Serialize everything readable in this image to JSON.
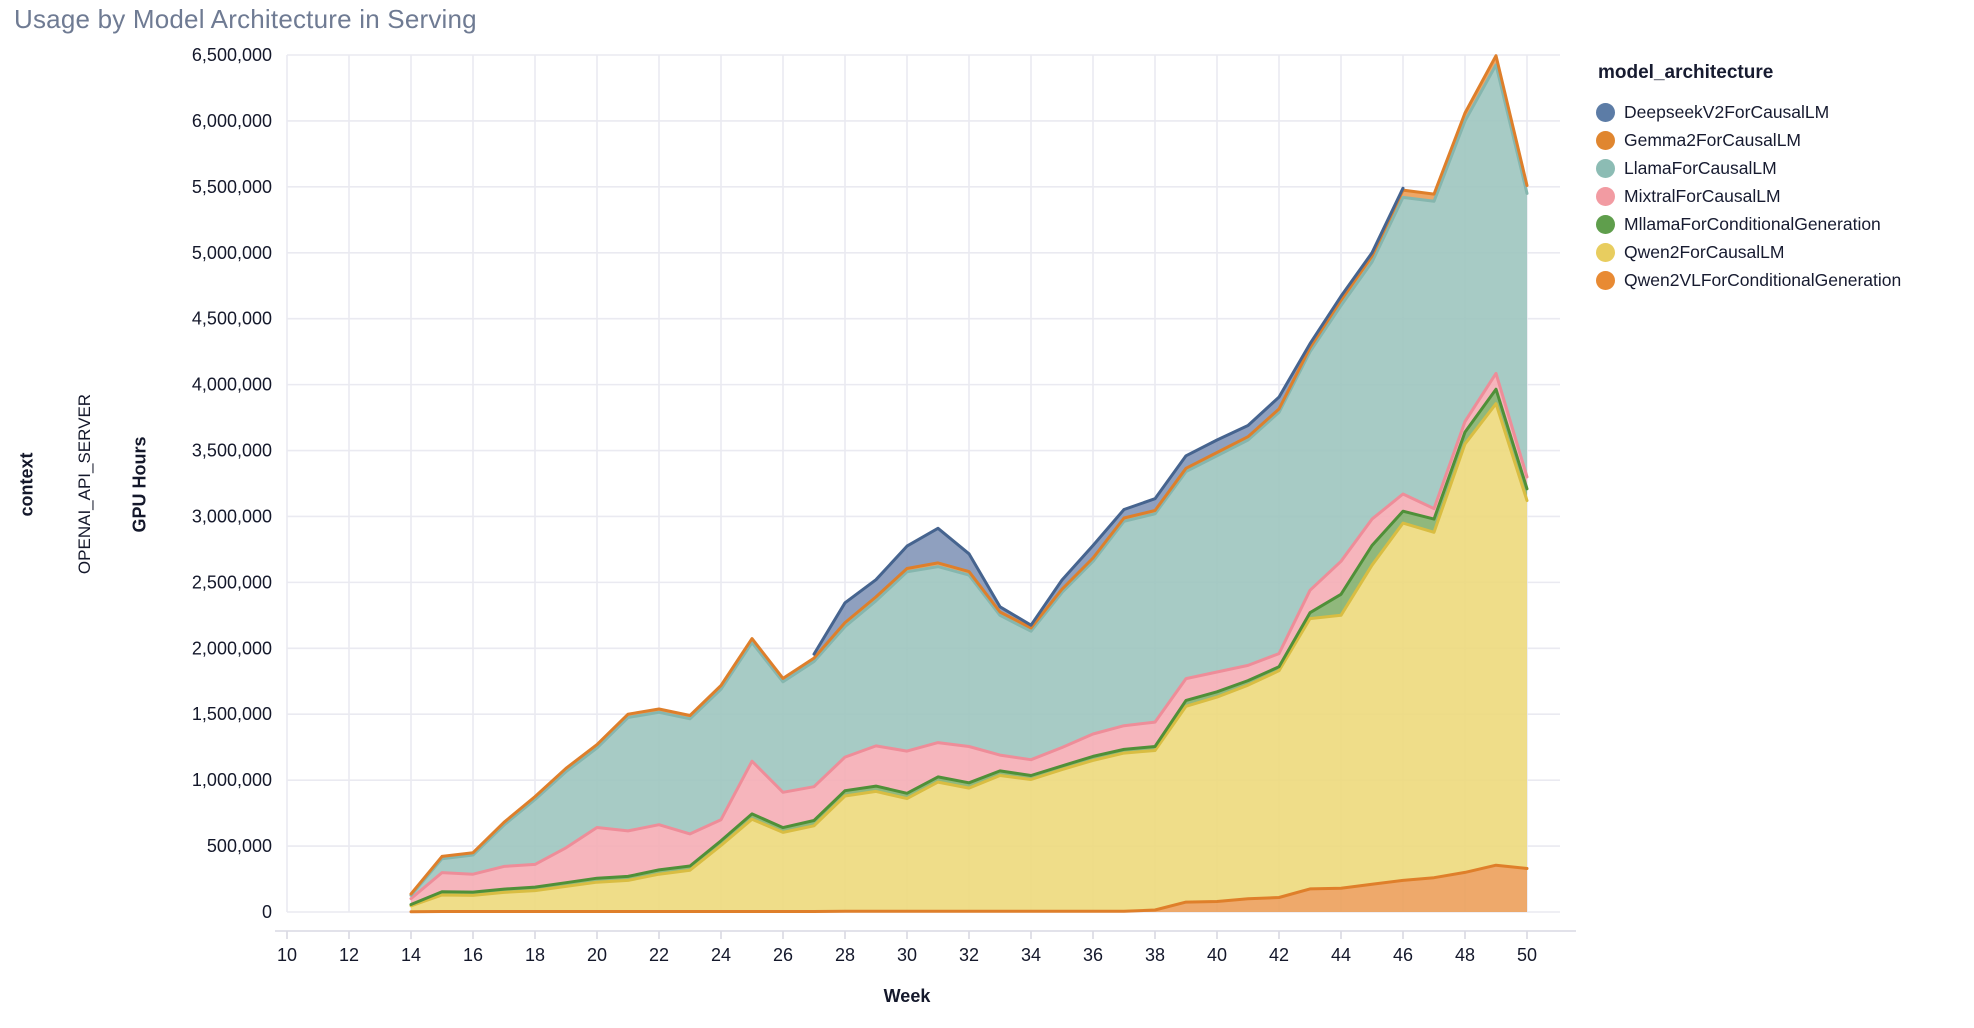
{
  "page": {
    "title": "Usage by Model Architecture in Serving"
  },
  "facet": {
    "row_field": "context",
    "row_value": "OPENAI_API_SERVER"
  },
  "axes": {
    "y_title": "GPU Hours",
    "x_title": "Week",
    "y_tick_labels": [
      "0",
      "500,000",
      "1,000,000",
      "1,500,000",
      "2,000,000",
      "2,500,000",
      "3,000,000",
      "3,500,000",
      "4,000,000",
      "4,500,000",
      "5,000,000",
      "5,500,000",
      "6,000,000",
      "6,500,000"
    ],
    "x_tick_labels": [
      "10",
      "12",
      "14",
      "16",
      "18",
      "20",
      "22",
      "24",
      "26",
      "28",
      "30",
      "32",
      "34",
      "36",
      "38",
      "40",
      "42",
      "44",
      "46",
      "48",
      "50"
    ]
  },
  "legend": {
    "title": "model_architecture"
  },
  "chart_data": {
    "type": "area",
    "stacked": true,
    "title": "Usage by Model Architecture in Serving",
    "xlabel": "Week",
    "ylabel": "GPU Hours",
    "x_domain": [
      10,
      50
    ],
    "ylim": [
      0,
      6500000
    ],
    "grid": true,
    "legend_position": "right",
    "x": [
      14,
      15,
      16,
      17,
      18,
      19,
      20,
      21,
      22,
      23,
      24,
      25,
      26,
      27,
      28,
      29,
      30,
      31,
      32,
      33,
      34,
      35,
      36,
      37,
      38,
      39,
      40,
      41,
      42,
      43,
      44,
      45,
      46,
      47,
      48,
      49,
      50
    ],
    "colors": {
      "grid": "#eaeaf1",
      "axis_line": "#d9d9e3",
      "tick_text": "#14182b",
      "title_text": "#6f7b93"
    },
    "series": [
      {
        "name": "DeepseekV2ForCausalLM",
        "legend_color": "#5c7ca6",
        "fill": "#7e92b5",
        "stroke": "#46648f",
        "values": [
          null,
          null,
          null,
          null,
          null,
          null,
          null,
          null,
          null,
          null,
          null,
          null,
          null,
          30000,
          150000,
          130000,
          170000,
          262000,
          135000,
          40000,
          20000,
          70000,
          95000,
          65000,
          90000,
          95000,
          95000,
          85000,
          90000,
          30000,
          30000,
          25000,
          15000,
          null,
          null,
          null,
          null
        ]
      },
      {
        "name": "Gemma2ForCausalLM",
        "legend_color": "#e0862f",
        "fill": "#ec9a50",
        "stroke": "#de7f2b",
        "values": [
          10000,
          18000,
          18000,
          20000,
          22000,
          25000,
          25000,
          25000,
          25000,
          25000,
          28000,
          30000,
          26000,
          26000,
          30000,
          30000,
          25000,
          28000,
          27000,
          25000,
          25000,
          25000,
          25000,
          25000,
          25000,
          25000,
          25000,
          25000,
          25000,
          30000,
          40000,
          45000,
          55000,
          55000,
          60000,
          70000,
          60000
        ]
      },
      {
        "name": "LlamaForCausalLM",
        "legend_color": "#8cbcb4",
        "fill": "#9ac3bc",
        "stroke": "#85b6ae",
        "values": [
          25000,
          105000,
          145000,
          314000,
          492000,
          578000,
          604000,
          860000,
          853000,
          873000,
          990000,
          900000,
          838000,
          950000,
          990000,
          1100000,
          1360000,
          1335000,
          1300000,
          1060000,
          975000,
          1175000,
          1310000,
          1550000,
          1580000,
          1570000,
          1640000,
          1710000,
          1830000,
          1810000,
          1940000,
          1950000,
          2250000,
          2330000,
          2280000,
          2340000,
          2150000
        ]
      },
      {
        "name": "MixtralForCausalLM",
        "legend_color": "#f29ba2",
        "fill": "#f5aab2",
        "stroke": "#ee8d99",
        "values": [
          45000,
          145000,
          136000,
          172000,
          172000,
          265000,
          385000,
          345000,
          343000,
          243000,
          160000,
          400000,
          268000,
          256000,
          255000,
          305000,
          320000,
          260000,
          275000,
          120000,
          120000,
          140000,
          170000,
          180000,
          185000,
          165000,
          150000,
          115000,
          100000,
          170000,
          250000,
          200000,
          130000,
          80000,
          80000,
          120000,
          90000
        ]
      },
      {
        "name": "MllamaForConditionalGeneration",
        "legend_color": "#5f9e4c",
        "fill": "#7fae69",
        "stroke": "#4f9038",
        "values": [
          10000,
          25000,
          25000,
          25000,
          27000,
          28000,
          30000,
          30000,
          32000,
          32000,
          36000,
          40000,
          36000,
          40000,
          40000,
          40000,
          40000,
          40000,
          40000,
          35000,
          30000,
          28000,
          30000,
          28000,
          30000,
          45000,
          40000,
          35000,
          30000,
          45000,
          160000,
          150000,
          90000,
          100000,
          90000,
          110000,
          90000
        ]
      },
      {
        "name": "Qwen2ForCausalLM",
        "legend_color": "#e8cd5f",
        "fill": "#edd878",
        "stroke": "#d9bd42",
        "values": [
          45000,
          125000,
          122000,
          145000,
          158000,
          190000,
          222000,
          236000,
          283000,
          313000,
          500000,
          700000,
          600000,
          650000,
          875000,
          910000,
          855000,
          980000,
          935000,
          1030000,
          1000000,
          1075000,
          1145000,
          1200000,
          1210000,
          1485000,
          1550000,
          1620000,
          1720000,
          2050000,
          2070000,
          2420000,
          2710000,
          2620000,
          3250000,
          3500000,
          2790000
        ]
      },
      {
        "name": "Qwen2VLForConditionalGeneration",
        "legend_color": "#e88a33",
        "fill": "#ec9c55",
        "stroke": "#df7f2a",
        "values": [
          2000,
          4000,
          4000,
          4000,
          4000,
          4000,
          4000,
          4000,
          4000,
          4000,
          4000,
          4000,
          4000,
          4000,
          5000,
          5000,
          5000,
          5000,
          5000,
          5000,
          5000,
          5000,
          5000,
          5000,
          15000,
          75000,
          80000,
          100000,
          110000,
          175000,
          180000,
          210000,
          240000,
          260000,
          300000,
          355000,
          330000
        ]
      }
    ]
  }
}
